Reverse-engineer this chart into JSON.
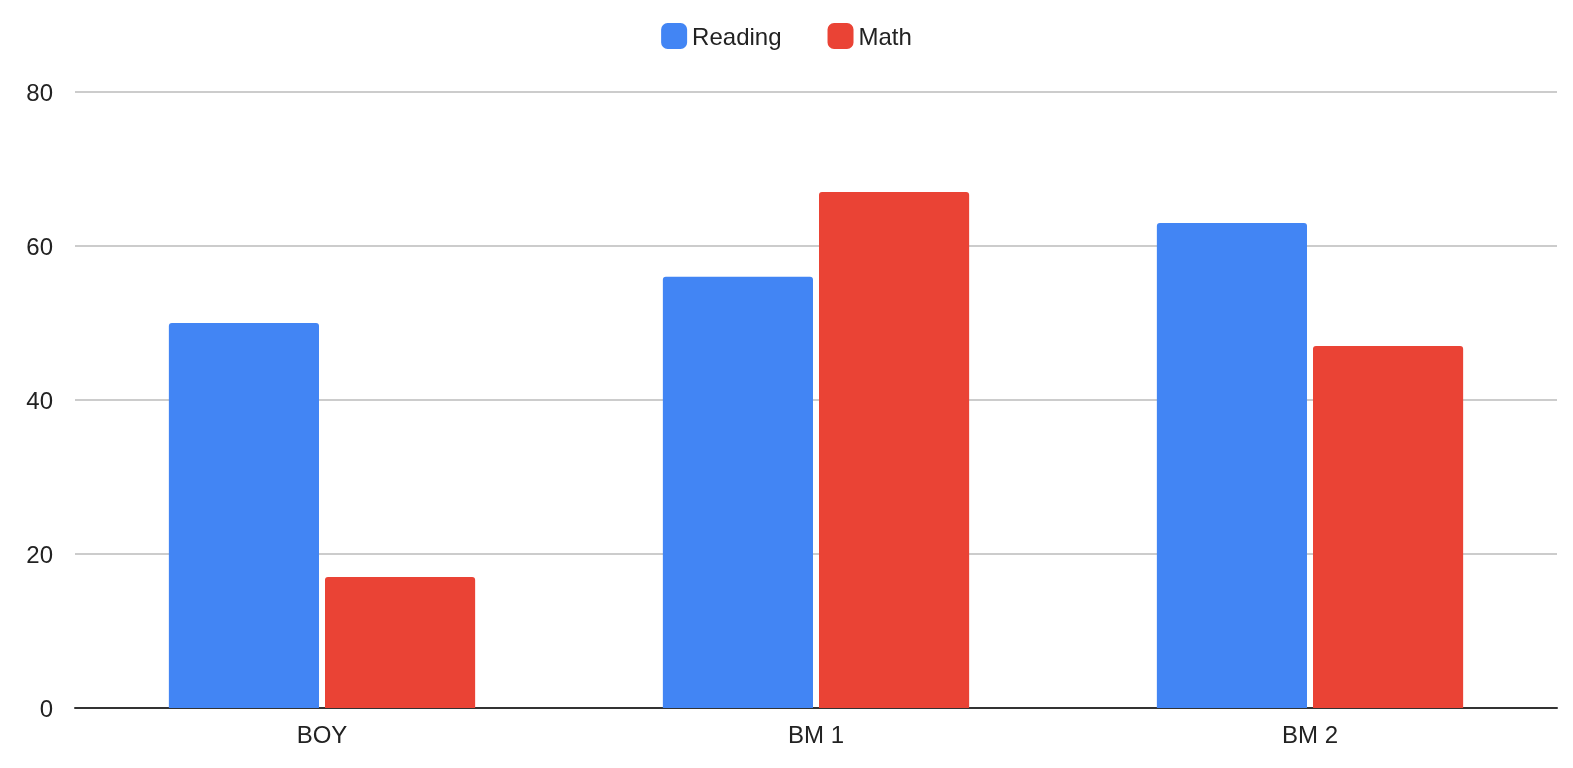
{
  "chart_data": {
    "type": "bar",
    "categories": [
      "BOY",
      "BM 1",
      "BM 2"
    ],
    "series": [
      {
        "name": "Reading",
        "color": "#4285f4",
        "values": [
          50,
          56,
          63
        ]
      },
      {
        "name": "Math",
        "color": "#ea4335",
        "values": [
          17,
          67,
          47
        ]
      }
    ],
    "ylim": [
      0,
      80
    ],
    "yticks": [
      0,
      20,
      40,
      60,
      80
    ],
    "grid": "y",
    "legend": "top"
  }
}
